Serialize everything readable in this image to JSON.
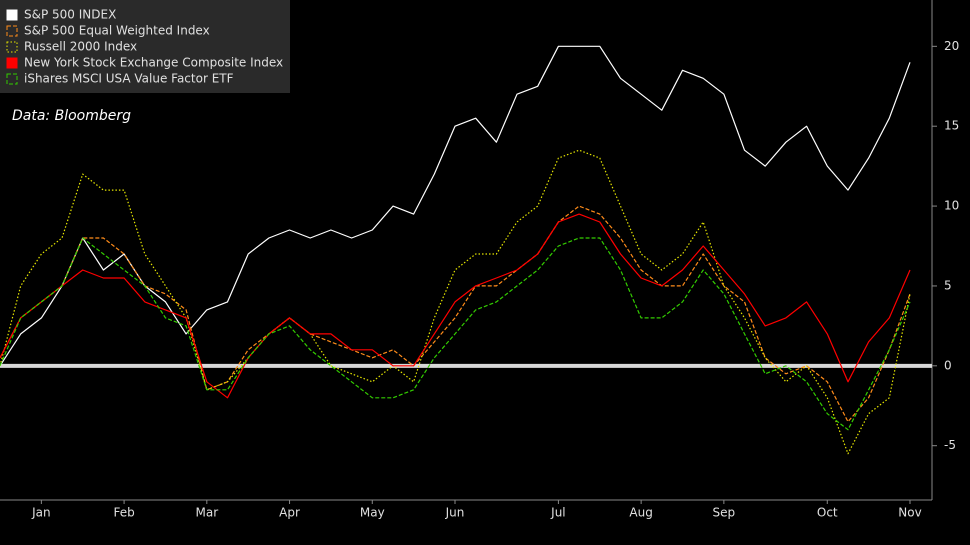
{
  "chart_data": {
    "type": "line",
    "annotation": "Data: Bloomberg",
    "categories": [
      null,
      null,
      "Jan",
      null,
      null,
      null,
      "Feb",
      null,
      null,
      null,
      "Mar",
      null,
      null,
      null,
      "Apr",
      null,
      null,
      null,
      "May",
      null,
      null,
      null,
      "Jun",
      null,
      null,
      null,
      null,
      "Jul",
      null,
      null,
      null,
      "Aug",
      null,
      null,
      null,
      "Sep",
      null,
      null,
      null,
      null,
      "Oct",
      null,
      null,
      null,
      "Nov"
    ],
    "series": [
      {
        "name": "S&P 500 INDEX",
        "color": "#ffffff",
        "style": "solid",
        "values": [
          0,
          2,
          3,
          5,
          8,
          6,
          7,
          5,
          4,
          2,
          3.5,
          4,
          7,
          8,
          8.5,
          8,
          8.5,
          8,
          8.5,
          10,
          9.5,
          12,
          15,
          15.5,
          14,
          17,
          17.5,
          20,
          20,
          20,
          18,
          17,
          16,
          18.5,
          18,
          17,
          13.5,
          12.5,
          14,
          15,
          12.5,
          11,
          13,
          15.5,
          19
        ]
      },
      {
        "name": "S&P 500 Equal Weighted Index",
        "color": "#ff8c1a",
        "style": "dashed",
        "values": [
          0.5,
          3,
          4,
          5,
          8,
          8,
          7,
          5,
          4.5,
          3.5,
          -1.5,
          -1,
          1,
          2,
          3,
          2,
          1.5,
          1,
          0.5,
          1,
          0,
          1.5,
          3,
          5,
          5,
          6,
          7,
          9,
          10,
          9.5,
          8,
          6,
          5,
          5,
          7,
          5,
          4,
          0.5,
          -0.5,
          0,
          -1,
          -3.5,
          -2,
          1,
          4.5
        ]
      },
      {
        "name": "Russell 2000 Index",
        "color": "#e6e600",
        "style": "dotted",
        "values": [
          0,
          5,
          7,
          8,
          12,
          11,
          11,
          7,
          5,
          3,
          -1.5,
          -1,
          0.5,
          2,
          3,
          2,
          0,
          -0.5,
          -1,
          0,
          -1,
          3,
          6,
          7,
          7,
          9,
          10,
          13,
          13.5,
          13,
          10,
          7,
          6,
          7,
          9,
          5,
          3,
          0.5,
          -1,
          0,
          -2,
          -5.5,
          -3,
          -2,
          4.5
        ]
      },
      {
        "name": "New York Stock Exchange Composite Index",
        "color": "#ff0000",
        "style": "solid",
        "values": [
          0.5,
          3,
          4,
          5,
          6,
          5.5,
          5.5,
          4,
          3.5,
          3,
          -1,
          -2,
          0.5,
          2,
          3,
          2,
          2,
          1,
          1,
          0,
          0,
          2,
          4,
          5,
          5.5,
          6,
          7,
          9,
          9.5,
          9,
          7,
          5.5,
          5,
          6,
          7.5,
          6,
          4.5,
          2.5,
          3,
          4,
          2,
          -1,
          1.5,
          3,
          6
        ]
      },
      {
        "name": "iShares MSCI USA Value Factor ETF",
        "color": "#33cc00",
        "style": "dashed",
        "values": [
          0,
          3,
          4,
          5,
          8,
          7,
          6,
          5,
          3,
          2.5,
          -1.5,
          -1.5,
          0.5,
          2,
          2.5,
          1,
          0,
          -1,
          -2,
          -2,
          -1.5,
          0.5,
          2,
          3.5,
          4,
          5,
          6,
          7.5,
          8,
          8,
          6,
          3,
          3,
          4,
          6,
          4.5,
          2,
          -0.5,
          0,
          -1,
          -3,
          -4,
          -1.5,
          1,
          4
        ]
      }
    ],
    "ylim": [
      -8.4,
      22.9
    ],
    "yticks": [
      -5,
      0,
      5,
      10,
      15,
      20
    ],
    "zero_line": true
  }
}
